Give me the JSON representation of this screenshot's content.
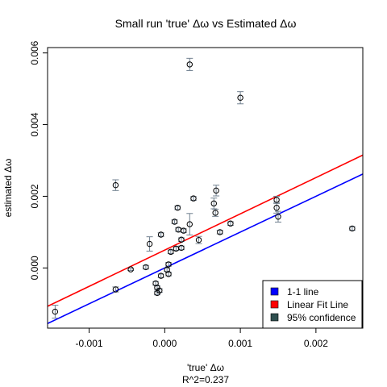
{
  "chart_data": {
    "type": "scatter",
    "title": "Small run 'true' Δω vs Estimated Δω",
    "xlabel": "'true' Δω",
    "ylabel": "estimated Δω",
    "subtitle": "R^2=0.237",
    "xlim": [
      -0.00155,
      0.00262
    ],
    "ylim": [
      -0.00168,
      0.00615
    ],
    "x_ticks": [
      {
        "value": -0.001,
        "label": "-0.001"
      },
      {
        "value": 0.0,
        "label": "0.000"
      },
      {
        "value": 0.001,
        "label": "0.001"
      },
      {
        "value": 0.002,
        "label": "0.002"
      }
    ],
    "y_ticks": [
      {
        "value": 0.0,
        "label": "0.000"
      },
      {
        "value": 0.002,
        "label": "0.002"
      },
      {
        "value": 0.004,
        "label": "0.004"
      },
      {
        "value": 0.006,
        "label": "0.006"
      }
    ],
    "points": [
      {
        "x": -0.00145,
        "y": -0.00122,
        "err": 0.00018
      },
      {
        "x": -0.00065,
        "y": -0.0006,
        "err": 7e-05
      },
      {
        "x": -0.00065,
        "y": 0.00231,
        "err": 0.00015
      },
      {
        "x": -0.00045,
        "y": -4e-05,
        "err": 3e-05
      },
      {
        "x": -0.00025,
        "y": 2e-05,
        "err": 5e-05
      },
      {
        "x": -0.0002,
        "y": 0.00067,
        "err": 0.0002
      },
      {
        "x": -0.00012,
        "y": -0.00043,
        "err": 5e-05
      },
      {
        "x": -0.0001,
        "y": -0.00055,
        "err": 5e-05
      },
      {
        "x": -0.0001,
        "y": -0.0007,
        "err": 5e-05
      },
      {
        "x": -7e-05,
        "y": -0.00063,
        "err": 5e-05
      },
      {
        "x": -5e-05,
        "y": 0.00093,
        "err": 5e-05
      },
      {
        "x": -5e-05,
        "y": -0.00022,
        "err": 5e-05
      },
      {
        "x": 3e-05,
        "y": -5e-05,
        "err": 5e-05
      },
      {
        "x": 5e-05,
        "y": 0.0001,
        "err": 5e-05
      },
      {
        "x": 5e-05,
        "y": -0.00017,
        "err": 5e-05
      },
      {
        "x": 8e-05,
        "y": 0.00045,
        "err": 5e-05
      },
      {
        "x": 0.00013,
        "y": 0.00129,
        "err": 5e-05
      },
      {
        "x": 0.00015,
        "y": 0.00054,
        "err": 5e-05
      },
      {
        "x": 0.00017,
        "y": 0.00168,
        "err": 5e-05
      },
      {
        "x": 0.00018,
        "y": 0.00107,
        "err": 5e-05
      },
      {
        "x": 0.00022,
        "y": 0.00079,
        "err": 5e-05
      },
      {
        "x": 0.00022,
        "y": 0.00056,
        "err": 5e-05
      },
      {
        "x": 0.00025,
        "y": 0.00104,
        "err": 5e-05
      },
      {
        "x": 0.00033,
        "y": 0.00122,
        "err": 0.0003
      },
      {
        "x": 0.00033,
        "y": 0.00568,
        "err": 0.00017
      },
      {
        "x": 0.00038,
        "y": 0.00194,
        "err": 5e-05
      },
      {
        "x": 0.00045,
        "y": 0.00078,
        "err": 0.0001
      },
      {
        "x": 0.00065,
        "y": 0.0018,
        "err": 0.00015
      },
      {
        "x": 0.00067,
        "y": 0.00154,
        "err": 0.0001
      },
      {
        "x": 0.00068,
        "y": 0.00216,
        "err": 0.00015
      },
      {
        "x": 0.00073,
        "y": 0.001,
        "err": 5e-05
      },
      {
        "x": 0.00087,
        "y": 0.00124,
        "err": 5e-05
      },
      {
        "x": 0.001,
        "y": 0.00475,
        "err": 0.00017
      },
      {
        "x": 0.00148,
        "y": 0.00168,
        "err": 0.00015
      },
      {
        "x": 0.00148,
        "y": 0.0019,
        "err": 0.0001
      },
      {
        "x": 0.0015,
        "y": 0.00143,
        "err": 0.00015
      },
      {
        "x": 0.00248,
        "y": 0.0011,
        "err": 5e-05
      }
    ],
    "lines": [
      {
        "name": "1-1 line",
        "color": "#0000ff",
        "slope": 1.0,
        "intercept": 0.0
      },
      {
        "name": "Linear Fit Line",
        "color": "#ff0000",
        "slope": 1.0116,
        "intercept": 0.000498
      }
    ],
    "legend": {
      "placement": "bottom-right",
      "entries": [
        {
          "label": "1-1 line",
          "color": "#0000ff"
        },
        {
          "label": "Linear Fit Line",
          "color": "#ff0000"
        },
        {
          "label": "95% confidence",
          "color": "#2f4f4f"
        }
      ]
    },
    "errorbar_color": "#708090",
    "grid": false
  }
}
